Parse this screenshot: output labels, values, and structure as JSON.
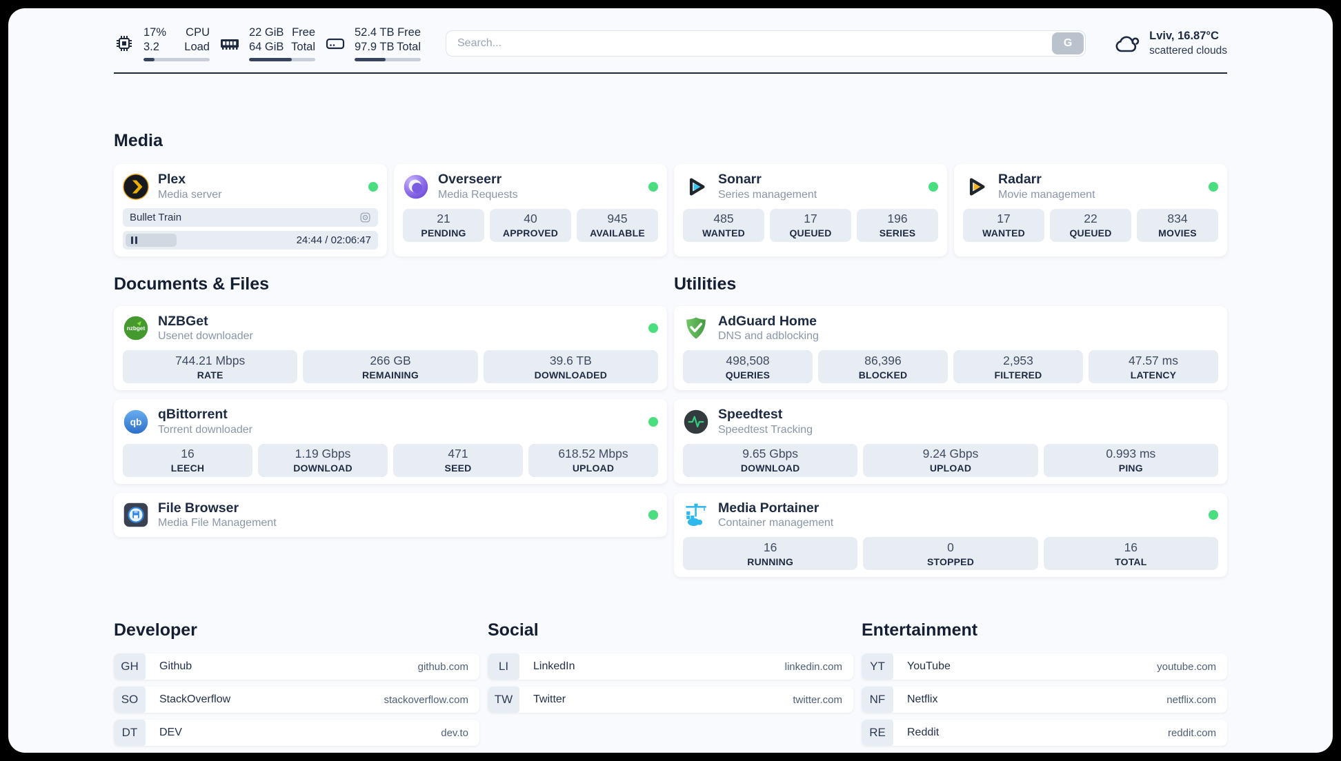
{
  "header": {
    "cpu": {
      "value_top": "17%",
      "value_bottom": "3.2",
      "label_top": "CPU",
      "label_bottom": "Load",
      "bar_percent": 17
    },
    "memory": {
      "value_top": "22 GiB",
      "value_bottom": "64 GiB",
      "label_top": "Free",
      "label_bottom": "Total",
      "bar_percent": 65
    },
    "disk": {
      "value_top": "52.4 TB",
      "value_bottom": "97.9 TB",
      "label_top": "Free",
      "label_bottom": "Total",
      "bar_percent": 47
    },
    "search": {
      "placeholder": "Search...",
      "button_label": "G"
    },
    "weather": {
      "location": "Lviv, 16.87°C",
      "condition": "scattered clouds"
    }
  },
  "sections": {
    "media": {
      "title": "Media"
    },
    "documents": {
      "title": "Documents & Files"
    },
    "utilities": {
      "title": "Utilities"
    }
  },
  "services": {
    "plex": {
      "name": "Plex",
      "subtitle": "Media server",
      "online": true,
      "now_playing": {
        "title": "Bullet Train",
        "time_display": "24:44 / 02:06:47",
        "progress_percent": 20
      }
    },
    "overseerr": {
      "name": "Overseerr",
      "subtitle": "Media Requests",
      "online": true,
      "stats": [
        {
          "value": "21",
          "label": "PENDING"
        },
        {
          "value": "40",
          "label": "APPROVED"
        },
        {
          "value": "945",
          "label": "AVAILABLE"
        }
      ]
    },
    "sonarr": {
      "name": "Sonarr",
      "subtitle": "Series management",
      "online": true,
      "stats": [
        {
          "value": "485",
          "label": "WANTED"
        },
        {
          "value": "17",
          "label": "QUEUED"
        },
        {
          "value": "196",
          "label": "SERIES"
        }
      ]
    },
    "radarr": {
      "name": "Radarr",
      "subtitle": "Movie management",
      "online": true,
      "stats": [
        {
          "value": "17",
          "label": "WANTED"
        },
        {
          "value": "22",
          "label": "QUEUED"
        },
        {
          "value": "834",
          "label": "MOVIES"
        }
      ]
    },
    "nzbget": {
      "name": "NZBGet",
      "subtitle": "Usenet downloader",
      "online": true,
      "icon_text": "nzbget",
      "stats": [
        {
          "value": "744.21 Mbps",
          "label": "RATE"
        },
        {
          "value": "266 GB",
          "label": "REMAINING"
        },
        {
          "value": "39.6 TB",
          "label": "DOWNLOADED"
        }
      ]
    },
    "qbittorrent": {
      "name": "qBittorrent",
      "subtitle": "Torrent downloader",
      "online": true,
      "icon_text": "qb",
      "stats": [
        {
          "value": "16",
          "label": "LEECH"
        },
        {
          "value": "1.19 Gbps",
          "label": "DOWNLOAD"
        },
        {
          "value": "471",
          "label": "SEED"
        },
        {
          "value": "618.52 Mbps",
          "label": "UPLOAD"
        }
      ]
    },
    "filebrowser": {
      "name": "File Browser",
      "subtitle": "Media File Management",
      "online": true,
      "stats": []
    },
    "adguard": {
      "name": "AdGuard Home",
      "subtitle": "DNS and adblocking",
      "online": false,
      "stats": [
        {
          "value": "498,508",
          "label": "QUERIES"
        },
        {
          "value": "86,396",
          "label": "BLOCKED"
        },
        {
          "value": "2,953",
          "label": "FILTERED"
        },
        {
          "value": "47.57 ms",
          "label": "LATENCY"
        }
      ]
    },
    "speedtest": {
      "name": "Speedtest",
      "subtitle": "Speedtest Tracking",
      "online": false,
      "stats": [
        {
          "value": "9.65 Gbps",
          "label": "DOWNLOAD"
        },
        {
          "value": "9.24 Gbps",
          "label": "UPLOAD"
        },
        {
          "value": "0.993 ms",
          "label": "PING"
        }
      ]
    },
    "portainer": {
      "name": "Media Portainer",
      "subtitle": "Container management",
      "online": true,
      "stats": [
        {
          "value": "16",
          "label": "RUNNING"
        },
        {
          "value": "0",
          "label": "STOPPED"
        },
        {
          "value": "16",
          "label": "TOTAL"
        }
      ]
    }
  },
  "bookmarks": {
    "developer": {
      "title": "Developer",
      "items": [
        {
          "abbr": "GH",
          "name": "Github",
          "url": "github.com"
        },
        {
          "abbr": "SO",
          "name": "StackOverflow",
          "url": "stackoverflow.com"
        },
        {
          "abbr": "DT",
          "name": "DEV",
          "url": "dev.to"
        }
      ]
    },
    "social": {
      "title": "Social",
      "items": [
        {
          "abbr": "LI",
          "name": "LinkedIn",
          "url": "linkedin.com"
        },
        {
          "abbr": "TW",
          "name": "Twitter",
          "url": "twitter.com"
        }
      ]
    },
    "entertainment": {
      "title": "Entertainment",
      "items": [
        {
          "abbr": "YT",
          "name": "YouTube",
          "url": "youtube.com"
        },
        {
          "abbr": "NF",
          "name": "Netflix",
          "url": "netflix.com"
        },
        {
          "abbr": "RE",
          "name": "Reddit",
          "url": "reddit.com"
        }
      ]
    }
  },
  "colors": {
    "status_online": "#4ade80",
    "accent_navy": "#1d2739",
    "stat_box": "#e8edf4"
  }
}
